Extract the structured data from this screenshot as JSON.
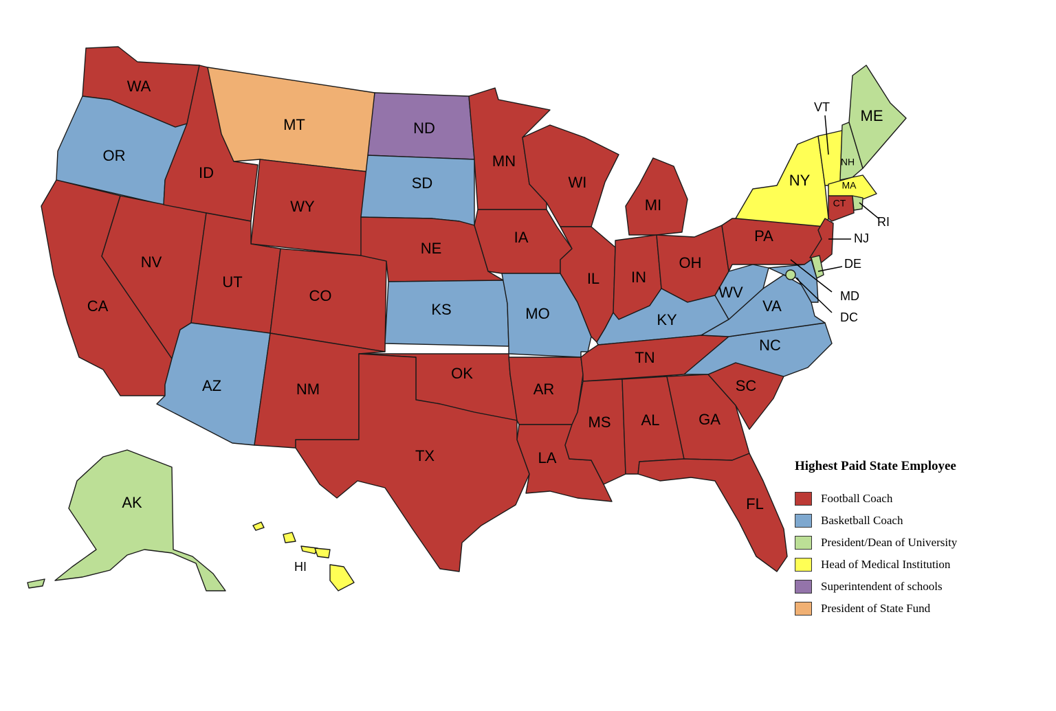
{
  "legend": {
    "title": "Highest Paid State Employee",
    "items": [
      {
        "id": "football",
        "label": "Football Coach",
        "color": "#bc3a35"
      },
      {
        "id": "basketball",
        "label": "Basketball Coach",
        "color": "#7ea8cf"
      },
      {
        "id": "president",
        "label": "President/Dean of University",
        "color": "#bcdf96"
      },
      {
        "id": "medical",
        "label": "Head of Medical Institution",
        "color": "#ffff55"
      },
      {
        "id": "superintendent",
        "label": "Superintendent of schools",
        "color": "#9474aa"
      },
      {
        "id": "statefund",
        "label": "President of State Fund",
        "color": "#f0b073"
      }
    ]
  },
  "states": {
    "WA": "football",
    "OR": "basketball",
    "CA": "football",
    "NV": "football",
    "ID": "football",
    "MT": "statefund",
    "WY": "football",
    "UT": "football",
    "AZ": "basketball",
    "CO": "football",
    "NM": "football",
    "ND": "superintendent",
    "SD": "basketball",
    "NE": "football",
    "KS": "basketball",
    "OK": "football",
    "TX": "football",
    "MN": "football",
    "IA": "football",
    "MO": "basketball",
    "AR": "football",
    "LA": "football",
    "WI": "football",
    "IL": "football",
    "MI": "football",
    "IN": "football",
    "OH": "football",
    "KY": "basketball",
    "TN": "football",
    "MS": "football",
    "AL": "football",
    "GA": "football",
    "FL": "football",
    "SC": "football",
    "NC": "basketball",
    "VA": "basketball",
    "WV": "basketball",
    "PA": "football",
    "NY": "medical",
    "VT": "medical",
    "NH": "president",
    "ME": "president",
    "MA": "medical",
    "CT": "football",
    "RI": "president",
    "NJ": "football",
    "DE": "president",
    "MD": "basketball",
    "DC": "president",
    "AK": "president",
    "HI": "medical"
  },
  "labels": {
    "WA": "WA",
    "OR": "OR",
    "CA": "CA",
    "NV": "NV",
    "ID": "ID",
    "MT": "MT",
    "WY": "WY",
    "UT": "UT",
    "AZ": "AZ",
    "CO": "CO",
    "NM": "NM",
    "ND": "ND",
    "SD": "SD",
    "NE": "NE",
    "KS": "KS",
    "OK": "OK",
    "TX": "TX",
    "MN": "MN",
    "IA": "IA",
    "MO": "MO",
    "AR": "AR",
    "LA": "LA",
    "WI": "WI",
    "IL": "IL",
    "MI": "MI",
    "IN": "IN",
    "OH": "OH",
    "KY": "KY",
    "TN": "TN",
    "MS": "MS",
    "AL": "AL",
    "GA": "GA",
    "FL": "FL",
    "SC": "SC",
    "NC": "NC",
    "VA": "VA",
    "WV": "WV",
    "PA": "PA",
    "NY": "NY",
    "VT": "VT",
    "NH": "NH",
    "ME": "ME",
    "MA": "MA",
    "CT": "CT",
    "RI": "RI",
    "NJ": "NJ",
    "DE": "DE",
    "MD": "MD",
    "DC": "DC",
    "AK": "AK",
    "HI": "HI"
  }
}
